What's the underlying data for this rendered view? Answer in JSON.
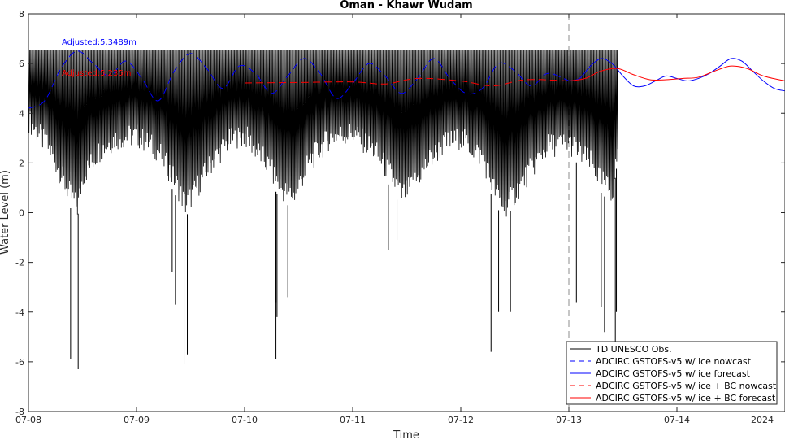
{
  "chart_data": {
    "type": "line",
    "title": "Oman - Khawr Wudam",
    "xlabel": "Time",
    "ylabel": "Water Level (m)",
    "ylim": [
      -8,
      8
    ],
    "yticks": [
      "-8",
      "-6",
      "-4",
      "-2",
      "0",
      "2",
      "4",
      "6",
      "8"
    ],
    "xlim": [
      "2024-07-08",
      "2024-07-15"
    ],
    "xticks": [
      "07-08",
      "07-09",
      "07-10",
      "07-11",
      "07-12",
      "07-13",
      "07-14"
    ],
    "x_year_label": "2024",
    "nowcast_boundary": "2024-07-13",
    "grid": false,
    "legend_position": "lower-right",
    "annotations": [
      {
        "text": "Adjusted:5.3489m",
        "color": "#0000ff"
      },
      {
        "text": "Adjusted:5.235m",
        "color": "#ff0000"
      }
    ],
    "series": [
      {
        "name": "TD UNESCO Obs.",
        "color": "#000000",
        "style": "solid",
        "x_range": [
          "2024-07-08",
          "2024-07-13T11:00"
        ],
        "upper_level": 6.55,
        "low_envelope": [
          {
            "x": 0.0,
            "y": 3.2
          },
          {
            "x": 0.2,
            "y": 2.0
          },
          {
            "x": 0.35,
            "y": 0.5
          },
          {
            "x": 0.45,
            "y": -0.3
          },
          {
            "x": 0.5,
            "y": 1.0
          },
          {
            "x": 0.65,
            "y": 2.0
          },
          {
            "x": 0.8,
            "y": 2.5
          },
          {
            "x": 1.0,
            "y": 2.6
          },
          {
            "x": 1.2,
            "y": 2.0
          },
          {
            "x": 1.35,
            "y": 0.8
          },
          {
            "x": 1.45,
            "y": -0.2
          },
          {
            "x": 1.55,
            "y": 0.5
          },
          {
            "x": 1.7,
            "y": 1.6
          },
          {
            "x": 1.85,
            "y": 2.4
          },
          {
            "x": 2.0,
            "y": 2.6
          },
          {
            "x": 2.2,
            "y": 1.5
          },
          {
            "x": 2.35,
            "y": 0.4
          },
          {
            "x": 2.45,
            "y": 0.2
          },
          {
            "x": 2.6,
            "y": 1.6
          },
          {
            "x": 2.8,
            "y": 2.6
          },
          {
            "x": 3.0,
            "y": 2.7
          },
          {
            "x": 3.2,
            "y": 2.0
          },
          {
            "x": 3.35,
            "y": 1.0
          },
          {
            "x": 3.45,
            "y": 0.2
          },
          {
            "x": 3.55,
            "y": 0.6
          },
          {
            "x": 3.7,
            "y": 1.6
          },
          {
            "x": 3.85,
            "y": 2.3
          },
          {
            "x": 4.0,
            "y": 2.5
          },
          {
            "x": 4.2,
            "y": 1.7
          },
          {
            "x": 4.3,
            "y": 0.5
          },
          {
            "x": 4.4,
            "y": -0.3
          },
          {
            "x": 4.5,
            "y": 0.3
          },
          {
            "x": 4.65,
            "y": 1.3
          },
          {
            "x": 4.8,
            "y": 2.2
          },
          {
            "x": 5.0,
            "y": 2.3
          },
          {
            "x": 5.2,
            "y": 1.5
          },
          {
            "x": 5.3,
            "y": 0.8
          },
          {
            "x": 5.4,
            "y": 0.3
          },
          {
            "x": 5.46,
            "y": 2.5
          }
        ],
        "spikes": [
          {
            "x": 0.39,
            "y": -5.9
          },
          {
            "x": 0.46,
            "y": -6.3
          },
          {
            "x": 1.33,
            "y": -2.4
          },
          {
            "x": 1.36,
            "y": -3.7
          },
          {
            "x": 1.44,
            "y": -6.1
          },
          {
            "x": 1.47,
            "y": -5.7
          },
          {
            "x": 2.3,
            "y": -4.2
          },
          {
            "x": 2.29,
            "y": -3.6
          },
          {
            "x": 2.29,
            "y": -5.9
          },
          {
            "x": 3.33,
            "y": -1.5
          },
          {
            "x": 3.41,
            "y": -1.1
          },
          {
            "x": 4.28,
            "y": -5.6
          },
          {
            "x": 4.35,
            "y": -4.0
          },
          {
            "x": 4.46,
            "y": -4.0
          },
          {
            "x": 5.07,
            "y": -3.6
          },
          {
            "x": 5.3,
            "y": -3.8
          },
          {
            "x": 5.33,
            "y": -4.8
          },
          {
            "x": 5.43,
            "y": -5.2
          },
          {
            "x": 5.44,
            "y": -4.0
          },
          {
            "x": 2.4,
            "y": -3.4
          }
        ]
      },
      {
        "name": "ADCIRC GSTOFS-v5 w/ ice nowcast",
        "color": "#0000ff",
        "style": "dashed",
        "x": [
          0.0,
          0.15,
          0.3,
          0.45,
          0.6,
          0.75,
          0.9,
          1.05,
          1.2,
          1.35,
          1.5,
          1.65,
          1.8,
          1.95,
          2.1,
          2.25,
          2.4,
          2.55,
          2.7,
          2.85,
          3.0,
          3.15,
          3.3,
          3.45,
          3.6,
          3.75,
          3.9,
          4.05,
          4.2,
          4.35,
          4.5,
          4.65,
          4.8,
          4.95,
          5.0
        ],
        "y": [
          4.2,
          4.5,
          5.8,
          6.5,
          6.0,
          5.5,
          6.1,
          5.4,
          4.5,
          5.7,
          6.4,
          5.8,
          5.0,
          5.9,
          5.6,
          4.8,
          5.5,
          6.2,
          5.6,
          4.6,
          5.2,
          6.0,
          5.5,
          4.8,
          5.4,
          6.2,
          5.4,
          4.8,
          5.0,
          6.0,
          5.7,
          5.1,
          5.6,
          5.4,
          5.3
        ]
      },
      {
        "name": "ADCIRC GSTOFS-v5 w/ ice forecast",
        "color": "#0000ff",
        "style": "solid",
        "x": [
          5.0,
          5.1,
          5.2,
          5.3,
          5.4,
          5.5,
          5.6,
          5.7,
          5.8,
          5.9,
          6.0,
          6.1,
          6.2,
          6.3,
          6.4,
          6.5,
          6.6,
          6.7,
          6.8,
          6.9,
          7.0
        ],
        "y": [
          5.3,
          5.4,
          5.9,
          6.2,
          6.0,
          5.5,
          5.1,
          5.1,
          5.3,
          5.5,
          5.4,
          5.3,
          5.4,
          5.6,
          5.9,
          6.2,
          6.1,
          5.7,
          5.3,
          5.0,
          4.9
        ]
      },
      {
        "name": "ADCIRC GSTOFS-v5 w/ ice + BC nowcast",
        "color": "#ff0000",
        "style": "dashed",
        "x": [
          2.0,
          2.5,
          3.0,
          3.3,
          3.6,
          4.0,
          4.3,
          4.6,
          5.0
        ],
        "y": [
          5.22,
          5.24,
          5.26,
          5.18,
          5.4,
          5.3,
          5.1,
          5.35,
          5.3
        ]
      },
      {
        "name": "ADCIRC GSTOFS-v5 w/ ice + BC forecast",
        "color": "#ff0000",
        "style": "solid",
        "x": [
          5.0,
          5.15,
          5.3,
          5.45,
          5.6,
          5.75,
          5.9,
          6.05,
          6.2,
          6.35,
          6.5,
          6.65,
          6.8,
          7.0
        ],
        "y": [
          5.3,
          5.4,
          5.7,
          5.8,
          5.55,
          5.35,
          5.35,
          5.4,
          5.45,
          5.7,
          5.9,
          5.8,
          5.5,
          5.3
        ]
      }
    ]
  }
}
